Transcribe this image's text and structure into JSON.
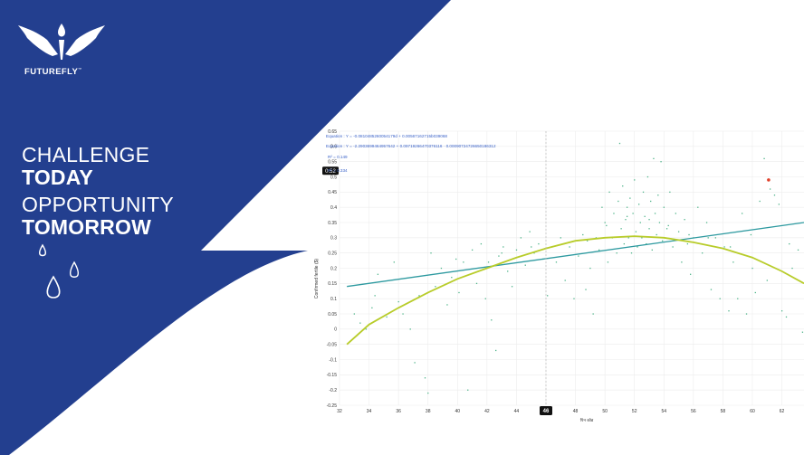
{
  "brand": {
    "name": "FUTUREFLY",
    "trademark": "™",
    "colors": {
      "navy": "#233f8f",
      "white": "#ffffff"
    }
  },
  "tagline": {
    "line1": "CHALLENGE",
    "line2": "TODAY",
    "line3": "OPPORTUNITY",
    "line4": "TOMORROW"
  },
  "icons": [
    "wing-logo-icon",
    "droplet-icon"
  ],
  "chart_data": {
    "type": "scatter",
    "title": "",
    "xlabel": "पिन कोड",
    "ylabel": "Confirmed fertile ($)",
    "xlim": [
      32,
      63.5
    ],
    "ylim": [
      -0.25,
      0.65
    ],
    "xticks": [
      "32",
      "34",
      "36",
      "38",
      "40",
      "42",
      "44",
      "46",
      "48",
      "50",
      "52",
      "54",
      "56",
      "58",
      "60",
      "62"
    ],
    "yticks": [
      "-0.25",
      "-0.2",
      "-0.15",
      "-0.1",
      "-0.05",
      "0",
      "0.05",
      "0.1",
      "0.15",
      "0.2",
      "0.25",
      "0.3",
      "0.35",
      "0.4",
      "0.45",
      "0.5",
      "0.55",
      "0.6",
      "0.65"
    ],
    "grid": true,
    "crosshair": {
      "x_label": "46",
      "y_label": "0.52"
    },
    "equations": [
      "Equation : Y = -0.0810485260054179d + 0.00567162715b039068",
      "Equation : Y = -2.2903699464957642 + 0.09719266470376116 · 0.00090724726650186312"
    ],
    "r_squared": [
      "R² = 0.149",
      "R² = 0.334"
    ],
    "series_colors": {
      "points": "#4fb48a",
      "linear": "#2e9aa0",
      "poly": "#b8cc2a",
      "highlight": "#e0402a"
    },
    "linear_fit": {
      "x": [
        32.5,
        63.5
      ],
      "y": [
        0.14,
        0.35
      ]
    },
    "poly_fit": {
      "x": [
        32.5,
        34,
        36,
        38,
        40,
        42,
        44,
        46,
        48,
        50,
        52,
        54,
        56,
        58,
        60,
        62,
        63.5
      ],
      "y": [
        -0.05,
        0.015,
        0.07,
        0.12,
        0.165,
        0.2,
        0.235,
        0.265,
        0.29,
        0.3,
        0.305,
        0.3,
        0.285,
        0.265,
        0.235,
        0.19,
        0.15
      ]
    },
    "highlight_point": {
      "x": 61.1,
      "y": 0.49
    },
    "points": [
      [
        33.0,
        0.05
      ],
      [
        33.4,
        0.02
      ],
      [
        33.8,
        0.0
      ],
      [
        34.2,
        0.07
      ],
      [
        34.6,
        0.18
      ],
      [
        33.2,
        -0.02
      ],
      [
        35.2,
        0.04
      ],
      [
        35.7,
        0.22
      ],
      [
        36.3,
        0.05
      ],
      [
        36.8,
        0.0
      ],
      [
        37.1,
        -0.11
      ],
      [
        37.4,
        0.11
      ],
      [
        37.8,
        -0.16
      ],
      [
        38.0,
        -0.21
      ],
      [
        38.2,
        0.25
      ],
      [
        38.5,
        0.14
      ],
      [
        38.9,
        0.2
      ],
      [
        39.3,
        0.08
      ],
      [
        39.6,
        0.17
      ],
      [
        40.1,
        0.12
      ],
      [
        40.4,
        0.22
      ],
      [
        40.7,
        -0.2
      ],
      [
        41.0,
        0.26
      ],
      [
        41.3,
        0.15
      ],
      [
        41.6,
        0.28
      ],
      [
        41.9,
        0.1
      ],
      [
        42.1,
        0.22
      ],
      [
        42.3,
        0.03
      ],
      [
        42.6,
        -0.07
      ],
      [
        42.8,
        0.24
      ],
      [
        43.1,
        0.27
      ],
      [
        43.4,
        0.19
      ],
      [
        43.7,
        0.14
      ],
      [
        44.0,
        0.26
      ],
      [
        44.3,
        0.3
      ],
      [
        44.6,
        0.21
      ],
      [
        44.9,
        0.32
      ],
      [
        45.2,
        0.25
      ],
      [
        45.5,
        0.28
      ],
      [
        45.8,
        0.23
      ],
      [
        46.1,
        0.11
      ],
      [
        46.4,
        0.27
      ],
      [
        46.7,
        0.22
      ],
      [
        47.0,
        0.3
      ],
      [
        47.3,
        0.16
      ],
      [
        47.6,
        0.27
      ],
      [
        47.9,
        0.1
      ],
      [
        48.2,
        0.24
      ],
      [
        48.5,
        0.31
      ],
      [
        48.7,
        0.13
      ],
      [
        49.0,
        0.2
      ],
      [
        49.2,
        0.05
      ],
      [
        49.4,
        0.3
      ],
      [
        49.6,
        0.26
      ],
      [
        49.8,
        0.4
      ],
      [
        50.0,
        0.35
      ],
      [
        50.2,
        0.22
      ],
      [
        50.3,
        0.45
      ],
      [
        50.5,
        0.3
      ],
      [
        50.6,
        0.38
      ],
      [
        50.8,
        0.25
      ],
      [
        50.9,
        0.42
      ],
      [
        51.0,
        0.61
      ],
      [
        51.1,
        0.33
      ],
      [
        51.2,
        0.47
      ],
      [
        51.3,
        0.28
      ],
      [
        51.4,
        0.36
      ],
      [
        51.5,
        0.4
      ],
      [
        51.6,
        0.3
      ],
      [
        51.7,
        0.43
      ],
      [
        51.8,
        0.25
      ],
      [
        51.9,
        0.38
      ],
      [
        52.0,
        0.49
      ],
      [
        52.1,
        0.32
      ],
      [
        52.2,
        0.27
      ],
      [
        52.3,
        0.41
      ],
      [
        52.4,
        0.35
      ],
      [
        52.5,
        0.3
      ],
      [
        52.6,
        0.45
      ],
      [
        52.7,
        0.37
      ],
      [
        52.8,
        0.28
      ],
      [
        52.9,
        0.5
      ],
      [
        53.0,
        0.33
      ],
      [
        53.1,
        0.42
      ],
      [
        53.2,
        0.26
      ],
      [
        53.3,
        0.56
      ],
      [
        53.4,
        0.38
      ],
      [
        53.5,
        0.31
      ],
      [
        53.6,
        0.44
      ],
      [
        53.7,
        0.35
      ],
      [
        53.8,
        0.55
      ],
      [
        53.9,
        0.29
      ],
      [
        54.0,
        0.4
      ],
      [
        54.2,
        0.33
      ],
      [
        54.4,
        0.45
      ],
      [
        54.6,
        0.27
      ],
      [
        54.8,
        0.38
      ],
      [
        55.0,
        0.32
      ],
      [
        55.2,
        0.22
      ],
      [
        55.4,
        0.36
      ],
      [
        55.6,
        0.28
      ],
      [
        55.8,
        0.18
      ],
      [
        56.0,
        0.3
      ],
      [
        56.3,
        0.4
      ],
      [
        56.6,
        0.25
      ],
      [
        56.9,
        0.35
      ],
      [
        57.2,
        0.13
      ],
      [
        57.5,
        0.3
      ],
      [
        57.8,
        0.1
      ],
      [
        58.1,
        0.27
      ],
      [
        58.4,
        0.06
      ],
      [
        58.7,
        0.22
      ],
      [
        59.0,
        0.1
      ],
      [
        59.3,
        0.38
      ],
      [
        59.6,
        0.05
      ],
      [
        59.9,
        0.31
      ],
      [
        60.2,
        0.12
      ],
      [
        60.5,
        0.42
      ],
      [
        60.8,
        0.56
      ],
      [
        61.2,
        0.46
      ],
      [
        61.5,
        0.44
      ],
      [
        61.8,
        0.41
      ],
      [
        62.0,
        0.06
      ],
      [
        62.3,
        0.04
      ],
      [
        62.7,
        0.2
      ],
      [
        63.1,
        0.26
      ],
      [
        63.4,
        -0.01
      ],
      [
        34.4,
        0.11
      ],
      [
        36.0,
        0.09
      ],
      [
        39.9,
        0.23
      ],
      [
        43.0,
        0.25
      ],
      [
        45.0,
        0.27
      ],
      [
        47.2,
        0.28
      ],
      [
        48.8,
        0.29
      ],
      [
        50.1,
        0.34
      ],
      [
        51.5,
        0.37
      ],
      [
        53.0,
        0.36
      ],
      [
        54.3,
        0.34
      ],
      [
        55.7,
        0.31
      ],
      [
        57.0,
        0.3
      ],
      [
        58.5,
        0.27
      ],
      [
        60.0,
        0.2
      ],
      [
        61.0,
        0.16
      ],
      [
        62.5,
        0.28
      ]
    ]
  }
}
